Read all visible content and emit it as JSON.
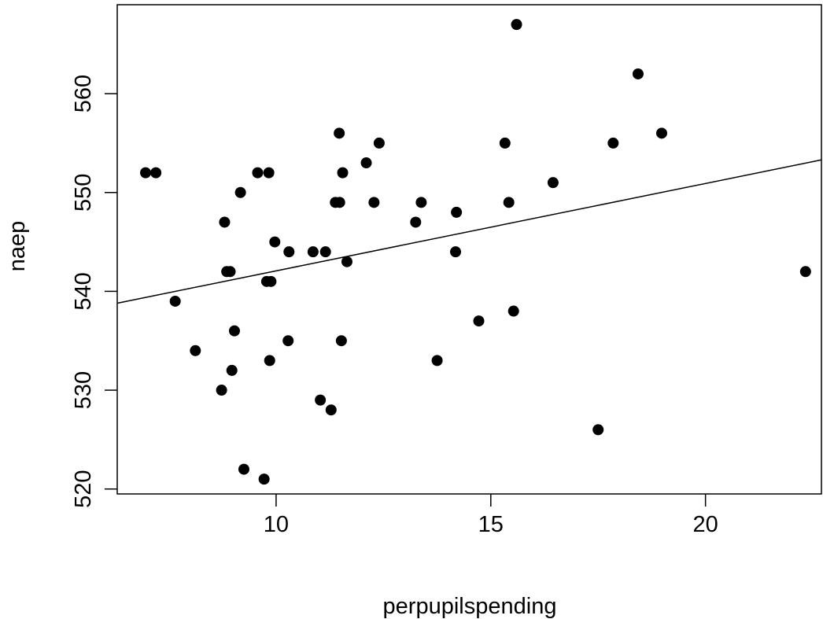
{
  "chart_data": {
    "type": "scatter",
    "xlabel": "perpupilspending",
    "ylabel": "naep",
    "xlim": [
      6.3,
      22.7
    ],
    "ylim": [
      519.5,
      569.0
    ],
    "xticks": [
      10,
      15,
      20
    ],
    "yticks": [
      520,
      530,
      540,
      550,
      560
    ],
    "x_tick_labels": [
      "10",
      "15",
      "20"
    ],
    "y_tick_labels": [
      "520",
      "530",
      "540",
      "550",
      "560"
    ],
    "grid": false,
    "legend": "none",
    "points": [
      {
        "x": 6.96,
        "y": 552
      },
      {
        "x": 7.2,
        "y": 552
      },
      {
        "x": 7.65,
        "y": 539
      },
      {
        "x": 8.12,
        "y": 534
      },
      {
        "x": 8.73,
        "y": 530
      },
      {
        "x": 8.8,
        "y": 547
      },
      {
        "x": 8.85,
        "y": 542
      },
      {
        "x": 8.93,
        "y": 542
      },
      {
        "x": 8.97,
        "y": 532
      },
      {
        "x": 9.03,
        "y": 536
      },
      {
        "x": 9.17,
        "y": 550
      },
      {
        "x": 9.25,
        "y": 522
      },
      {
        "x": 9.57,
        "y": 552
      },
      {
        "x": 9.72,
        "y": 521
      },
      {
        "x": 9.78,
        "y": 541
      },
      {
        "x": 9.88,
        "y": 541
      },
      {
        "x": 9.83,
        "y": 552
      },
      {
        "x": 9.85,
        "y": 533
      },
      {
        "x": 9.97,
        "y": 545
      },
      {
        "x": 10.28,
        "y": 535
      },
      {
        "x": 10.3,
        "y": 544
      },
      {
        "x": 10.86,
        "y": 544
      },
      {
        "x": 11.03,
        "y": 529
      },
      {
        "x": 11.15,
        "y": 544
      },
      {
        "x": 11.28,
        "y": 528
      },
      {
        "x": 11.38,
        "y": 549
      },
      {
        "x": 11.48,
        "y": 549
      },
      {
        "x": 11.47,
        "y": 556
      },
      {
        "x": 11.52,
        "y": 535
      },
      {
        "x": 11.55,
        "y": 552
      },
      {
        "x": 11.65,
        "y": 543
      },
      {
        "x": 12.1,
        "y": 553
      },
      {
        "x": 12.28,
        "y": 549
      },
      {
        "x": 12.4,
        "y": 555
      },
      {
        "x": 13.25,
        "y": 547
      },
      {
        "x": 13.38,
        "y": 549
      },
      {
        "x": 13.75,
        "y": 533
      },
      {
        "x": 14.2,
        "y": 548
      },
      {
        "x": 14.18,
        "y": 544
      },
      {
        "x": 14.72,
        "y": 537
      },
      {
        "x": 15.33,
        "y": 555
      },
      {
        "x": 15.42,
        "y": 549
      },
      {
        "x": 15.53,
        "y": 538
      },
      {
        "x": 15.6,
        "y": 567
      },
      {
        "x": 16.45,
        "y": 551
      },
      {
        "x": 17.5,
        "y": 526
      },
      {
        "x": 17.85,
        "y": 555
      },
      {
        "x": 18.43,
        "y": 562
      },
      {
        "x": 18.98,
        "y": 556
      },
      {
        "x": 22.33,
        "y": 542
      }
    ],
    "fit_line": {
      "x": [
        6.3,
        22.7
      ],
      "y": [
        538.8,
        553.3
      ]
    }
  }
}
